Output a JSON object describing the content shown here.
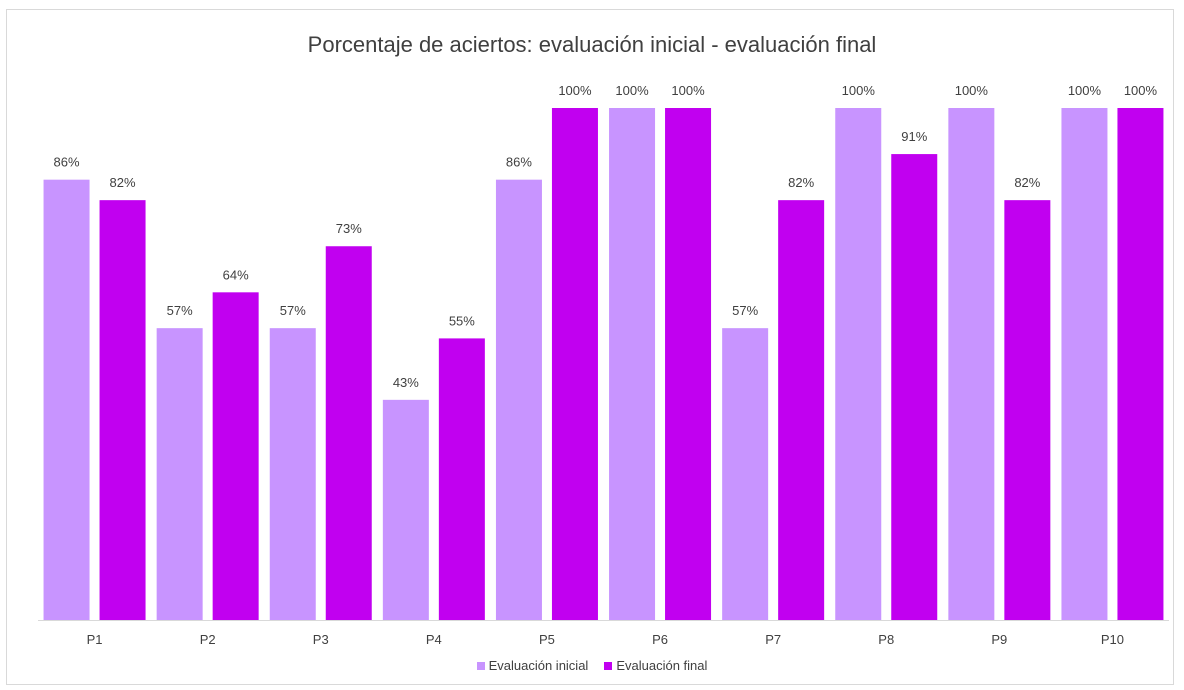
{
  "chart_data": {
    "type": "bar",
    "title": "Porcentaje de aciertos: evaluación inicial - evaluación final",
    "categories": [
      "P1",
      "P2",
      "P3",
      "P4",
      "P5",
      "P6",
      "P7",
      "P8",
      "P9",
      "P10"
    ],
    "series": [
      {
        "name": "Evaluación inicial",
        "color": "#c894ff",
        "values": [
          86,
          57,
          57,
          43,
          86,
          100,
          57,
          100,
          100,
          100
        ],
        "labels": [
          "86%",
          "57%",
          "57%",
          "43%",
          "86%",
          "100%",
          "57%",
          "100%",
          "100%",
          "100%"
        ]
      },
      {
        "name": "Evaluación final",
        "color": "#c100f0",
        "values": [
          82,
          64,
          73,
          55,
          100,
          100,
          82,
          91,
          82,
          100
        ],
        "labels": [
          "82%",
          "64%",
          "73%",
          "55%",
          "100%",
          "100%",
          "82%",
          "91%",
          "82%",
          "100%"
        ]
      }
    ],
    "ylim": [
      0,
      100
    ],
    "grid": false,
    "legend": "bottom"
  }
}
